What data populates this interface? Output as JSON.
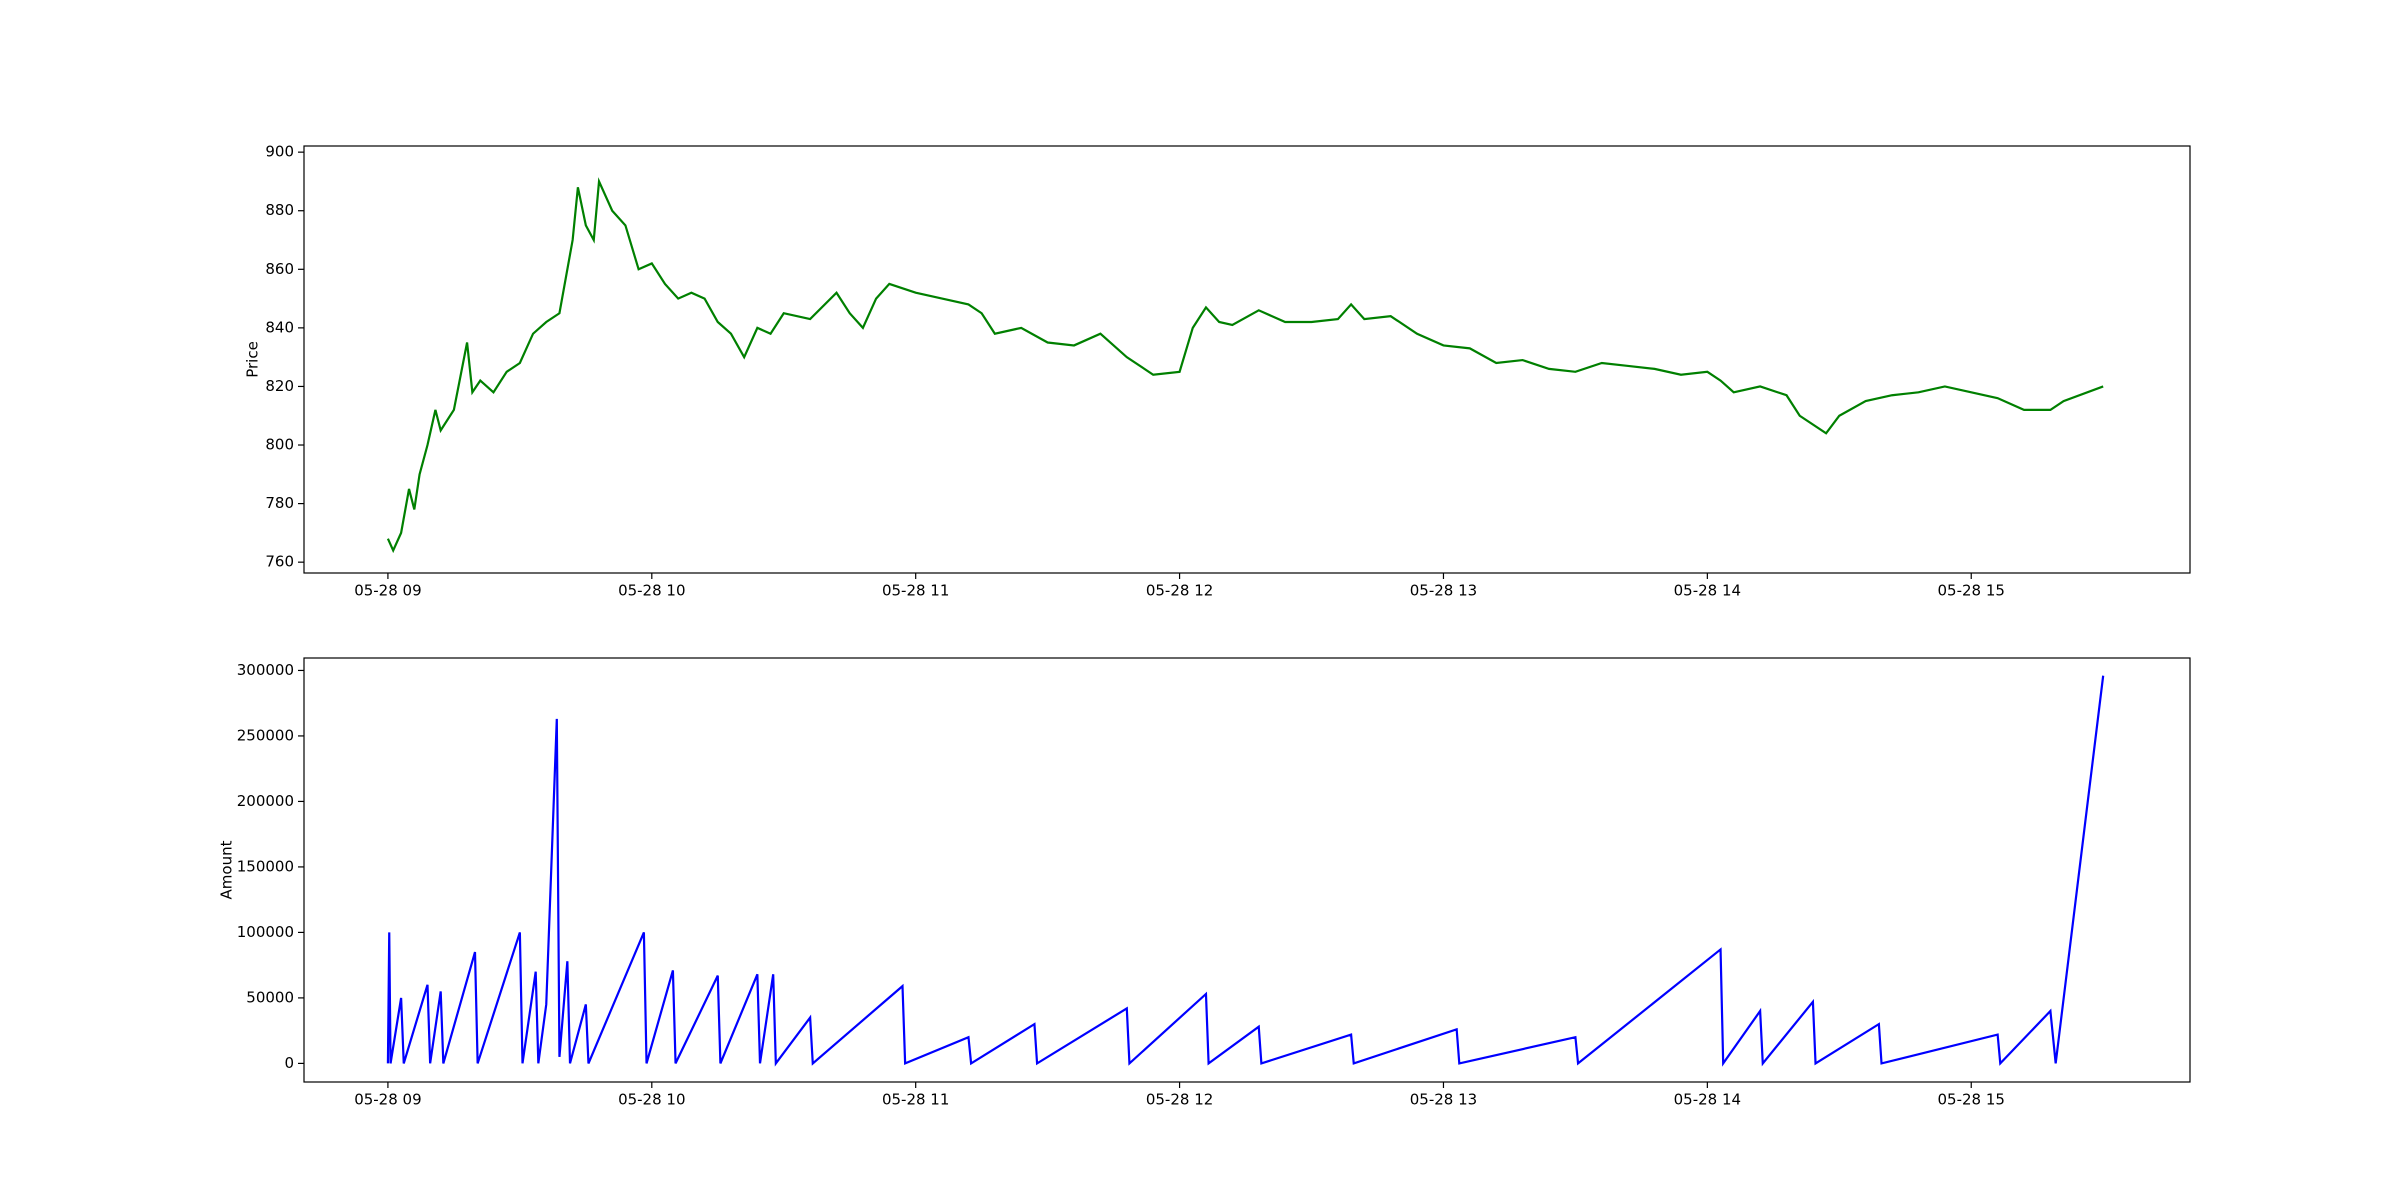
{
  "chart_data": [
    {
      "type": "line",
      "y_label": "Price",
      "x": [
        9.0,
        9.02,
        9.05,
        9.08,
        9.1,
        9.12,
        9.15,
        9.18,
        9.2,
        9.25,
        9.3,
        9.32,
        9.35,
        9.4,
        9.45,
        9.5,
        9.55,
        9.6,
        9.65,
        9.7,
        9.72,
        9.75,
        9.78,
        9.8,
        9.85,
        9.9,
        9.95,
        10.0,
        10.05,
        10.1,
        10.15,
        10.2,
        10.25,
        10.3,
        10.35,
        10.4,
        10.45,
        10.5,
        10.6,
        10.7,
        10.75,
        10.8,
        10.85,
        10.9,
        11.0,
        11.1,
        11.2,
        11.25,
        11.3,
        11.4,
        11.5,
        11.6,
        11.7,
        11.8,
        11.9,
        12.0,
        12.05,
        12.1,
        12.15,
        12.2,
        12.3,
        12.4,
        12.5,
        12.6,
        12.65,
        12.7,
        12.8,
        12.9,
        13.0,
        13.1,
        13.2,
        13.3,
        13.4,
        13.5,
        13.6,
        13.7,
        13.8,
        13.9,
        14.0,
        14.05,
        14.1,
        14.2,
        14.3,
        14.35,
        14.45,
        14.5,
        14.6,
        14.7,
        14.8,
        14.9,
        15.0,
        15.1,
        15.2,
        15.3,
        15.35,
        15.5
      ],
      "series": [
        {
          "color": "#008000",
          "values": [
            768,
            764,
            770,
            785,
            778,
            790,
            800,
            812,
            805,
            812,
            835,
            818,
            822,
            818,
            825,
            828,
            838,
            842,
            845,
            870,
            888,
            875,
            870,
            890,
            880,
            875,
            860,
            862,
            855,
            850,
            852,
            850,
            842,
            838,
            830,
            840,
            838,
            845,
            843,
            852,
            845,
            840,
            850,
            855,
            852,
            850,
            848,
            845,
            838,
            840,
            835,
            834,
            838,
            830,
            824,
            825,
            840,
            847,
            842,
            841,
            846,
            842,
            842,
            843,
            848,
            843,
            844,
            838,
            834,
            833,
            828,
            829,
            826,
            825,
            828,
            827,
            826,
            824,
            825,
            822,
            818,
            820,
            817,
            810,
            804,
            810,
            815,
            817,
            818,
            820,
            818,
            816,
            812,
            812,
            815,
            820
          ]
        }
      ],
      "xlim": [
        8.682,
        15.829
      ],
      "xticks": [
        {
          "value": 9,
          "label": "05-28 09"
        },
        {
          "value": 10,
          "label": "05-28 10"
        },
        {
          "value": 11,
          "label": "05-28 11"
        },
        {
          "value": 12,
          "label": "05-28 12"
        },
        {
          "value": 13,
          "label": "05-28 13"
        },
        {
          "value": 14,
          "label": "05-28 14"
        },
        {
          "value": 15,
          "label": "05-28 15"
        }
      ],
      "ylim": [
        756.3,
        902.1
      ],
      "yticks": [
        760,
        780,
        800,
        820,
        840,
        860,
        880,
        900
      ]
    },
    {
      "type": "line",
      "y_label": "Amount",
      "x": [
        9.0,
        9.005,
        9.01,
        9.05,
        9.06,
        9.15,
        9.16,
        9.2,
        9.21,
        9.33,
        9.34,
        9.5,
        9.51,
        9.56,
        9.57,
        9.6,
        9.64,
        9.65,
        9.68,
        9.69,
        9.75,
        9.76,
        9.97,
        9.98,
        10.08,
        10.09,
        10.25,
        10.26,
        10.4,
        10.41,
        10.46,
        10.47,
        10.6,
        10.61,
        10.95,
        10.96,
        11.2,
        11.21,
        11.45,
        11.46,
        11.8,
        11.81,
        12.1,
        12.11,
        12.3,
        12.31,
        12.65,
        12.66,
        13.05,
        13.06,
        13.5,
        13.51,
        14.05,
        14.06,
        14.2,
        14.21,
        14.4,
        14.41,
        14.65,
        14.66,
        15.1,
        15.11,
        15.3,
        15.32,
        15.5
      ],
      "series": [
        {
          "color": "#0000ff",
          "values": [
            0,
            100000,
            0,
            50000,
            0,
            60000,
            0,
            55000,
            0,
            85000,
            0,
            100000,
            0,
            70000,
            0,
            45000,
            263000,
            5000,
            78000,
            0,
            45000,
            0,
            100000,
            0,
            71000,
            0,
            67000,
            0,
            68000,
            0,
            68000,
            0,
            35000,
            0,
            59000,
            0,
            20000,
            0,
            30000,
            0,
            42000,
            0,
            53000,
            0,
            28000,
            0,
            22000,
            0,
            26000,
            0,
            20000,
            0,
            87000,
            0,
            40000,
            0,
            47000,
            0,
            30000,
            0,
            22000,
            0,
            40000,
            0,
            296000
          ]
        }
      ],
      "xlim": [
        8.682,
        15.829
      ],
      "xticks": [
        {
          "value": 9,
          "label": "05-28 09"
        },
        {
          "value": 10,
          "label": "05-28 10"
        },
        {
          "value": 11,
          "label": "05-28 11"
        },
        {
          "value": 12,
          "label": "05-28 12"
        },
        {
          "value": 13,
          "label": "05-28 13"
        },
        {
          "value": 14,
          "label": "05-28 14"
        },
        {
          "value": 15,
          "label": "05-28 15"
        }
      ],
      "ylim": [
        -14200,
        309500
      ],
      "yticks": [
        0,
        50000,
        100000,
        150000,
        200000,
        250000,
        300000
      ]
    }
  ]
}
